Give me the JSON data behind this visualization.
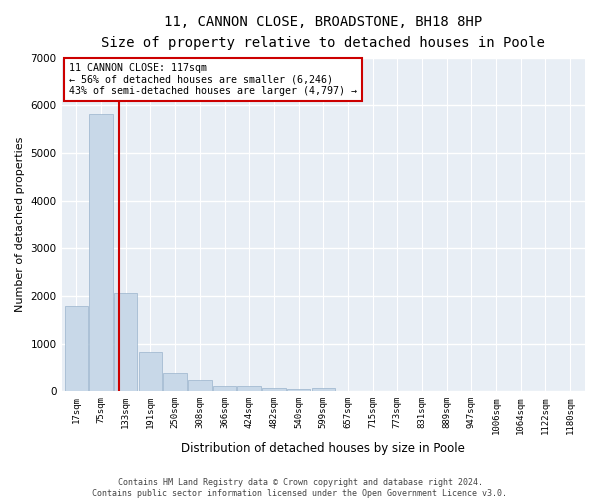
{
  "title": "11, CANNON CLOSE, BROADSTONE, BH18 8HP",
  "subtitle": "Size of property relative to detached houses in Poole",
  "xlabel": "Distribution of detached houses by size in Poole",
  "ylabel": "Number of detached properties",
  "bar_color": "#c8d8e8",
  "bar_edge_color": "#9ab4cc",
  "bg_color": "#e8eef5",
  "grid_color": "#ffffff",
  "annotation_box_color": "#cc0000",
  "annotation_line_color": "#cc0000",
  "property_size": 117,
  "annotation_text_line1": "11 CANNON CLOSE: 117sqm",
  "annotation_text_line2": "← 56% of detached houses are smaller (6,246)",
  "annotation_text_line3": "43% of semi-detached houses are larger (4,797) →",
  "categories": [
    "17sqm",
    "75sqm",
    "133sqm",
    "191sqm",
    "250sqm",
    "308sqm",
    "366sqm",
    "424sqm",
    "482sqm",
    "540sqm",
    "599sqm",
    "657sqm",
    "715sqm",
    "773sqm",
    "831sqm",
    "889sqm",
    "947sqm",
    "1006sqm",
    "1064sqm",
    "1122sqm",
    "1180sqm"
  ],
  "values": [
    1780,
    5820,
    2060,
    830,
    390,
    230,
    115,
    110,
    65,
    50,
    70,
    0,
    0,
    0,
    0,
    0,
    0,
    0,
    0,
    0,
    0
  ],
  "ylim": [
    0,
    7000
  ],
  "yticks": [
    0,
    1000,
    2000,
    3000,
    4000,
    5000,
    6000,
    7000
  ],
  "red_line_x": 1.72,
  "footer_line1": "Contains HM Land Registry data © Crown copyright and database right 2024.",
  "footer_line2": "Contains public sector information licensed under the Open Government Licence v3.0."
}
